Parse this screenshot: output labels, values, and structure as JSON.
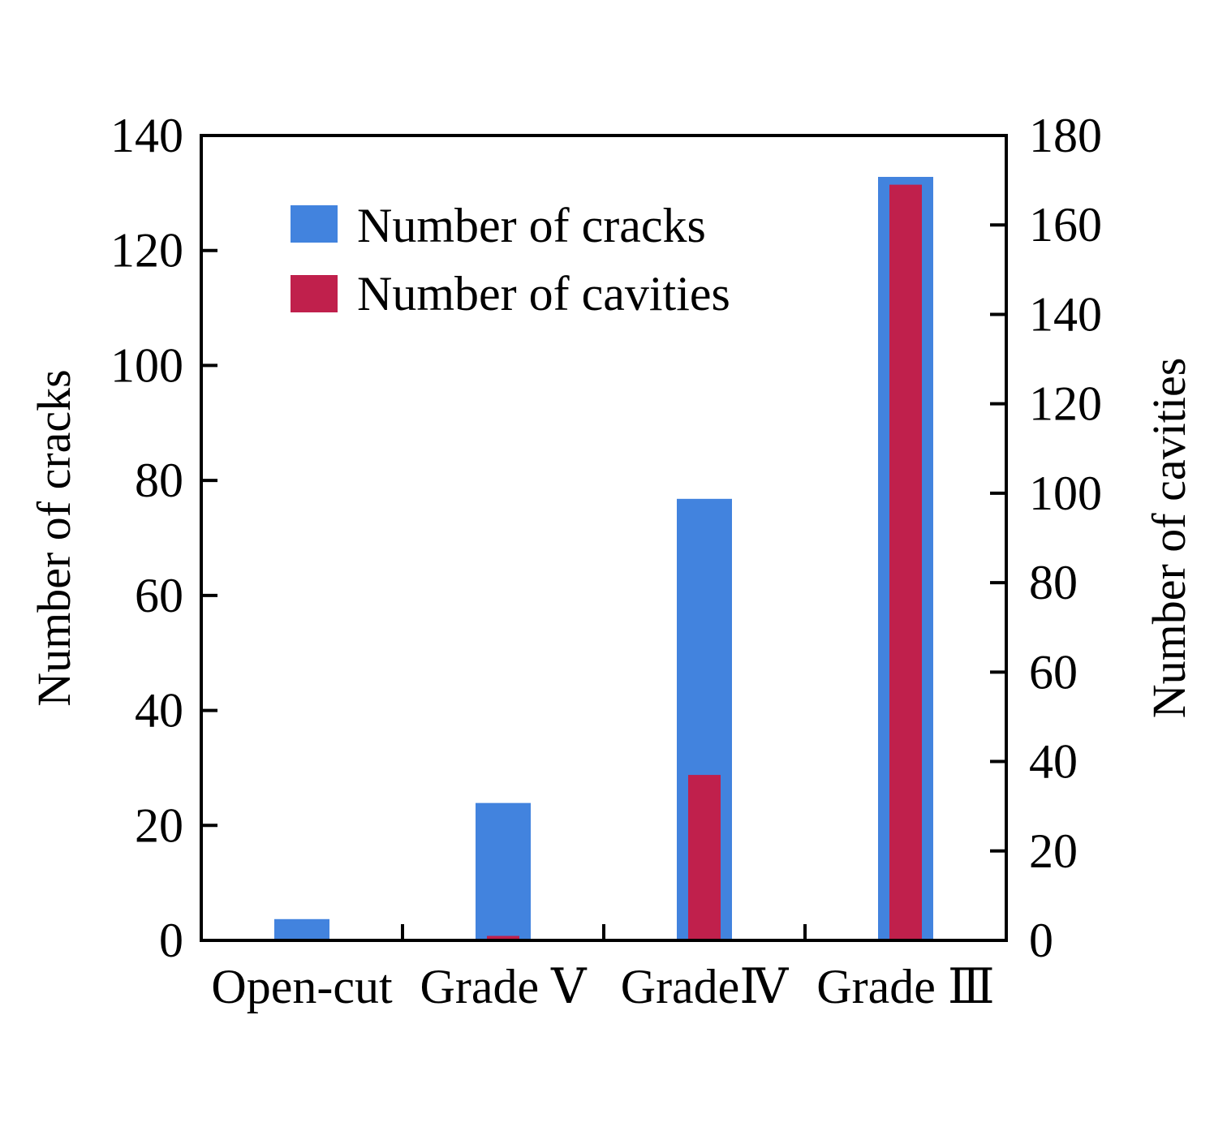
{
  "chart_data": {
    "type": "bar",
    "categories": [
      "Open-cut",
      "Grade V",
      "Grade IV",
      "Grade III"
    ],
    "category_labels": [
      "Open-cut",
      "Grade Ⅴ",
      "GradeⅣ",
      "Grade Ⅲ"
    ],
    "series": [
      {
        "name": "Number of cracks",
        "axis": "left",
        "values": [
          3.7,
          23.9,
          76.8,
          132.8
        ],
        "color": "#4283de"
      },
      {
        "name": "Number of cavities",
        "axis": "right",
        "values": [
          0,
          1,
          37,
          169
        ],
        "color": "#c0204c"
      }
    ],
    "ylabel": "Number of cracks",
    "y2label": "Number of cavities",
    "ylim": [
      0,
      140
    ],
    "y2lim": [
      0,
      180
    ],
    "yticks": [
      "0",
      "20",
      "40",
      "60",
      "80",
      "100",
      "120",
      "140"
    ],
    "y2ticks": [
      "0",
      "20",
      "40",
      "60",
      "80",
      "100",
      "120",
      "140",
      "160",
      "180"
    ],
    "legend": {
      "placement": "top-left",
      "entries": [
        "Number of cracks",
        "Number of cavities"
      ]
    },
    "grid": false
  }
}
